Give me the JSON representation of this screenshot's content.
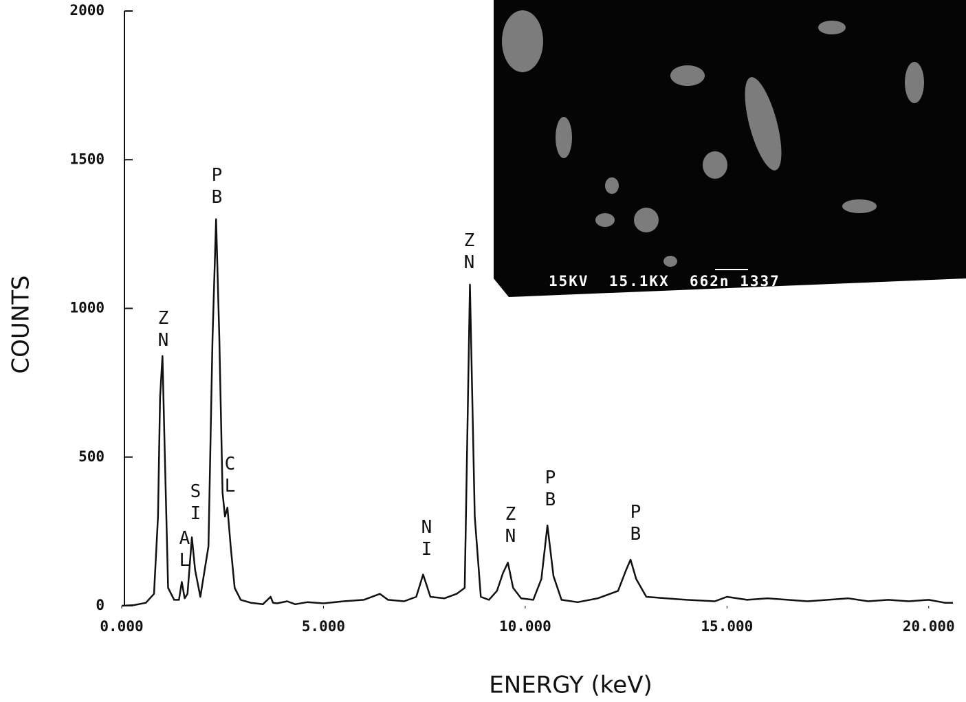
{
  "chart_data": {
    "type": "line",
    "xlabel": "ENERGY (keV)",
    "ylabel": "COUNTS",
    "color": "#111111",
    "x": [
      0,
      0.3,
      0.6,
      0.8,
      0.9,
      0.95,
      1.01,
      1.07,
      1.15,
      1.3,
      1.42,
      1.49,
      1.56,
      1.63,
      1.74,
      1.82,
      1.95,
      2.15,
      2.25,
      2.34,
      2.42,
      2.5,
      2.56,
      2.62,
      2.7,
      2.8,
      2.95,
      3.2,
      3.5,
      3.69,
      3.75,
      3.85,
      4.1,
      4.3,
      4.6,
      5.0,
      5.5,
      6.0,
      6.4,
      6.6,
      7.0,
      7.3,
      7.47,
      7.65,
      8.0,
      8.3,
      8.5,
      8.63,
      8.75,
      8.9,
      9.1,
      9.3,
      9.45,
      9.57,
      9.7,
      9.9,
      10.2,
      10.4,
      10.55,
      10.7,
      10.9,
      11.3,
      11.8,
      12.3,
      12.5,
      12.61,
      12.75,
      13.0,
      13.5,
      14.0,
      14.7,
      15.0,
      15.5,
      16.0,
      17.0,
      17.5,
      18.0,
      18.5,
      19.0,
      19.5,
      20.0,
      20.4,
      20.6
    ],
    "values": [
      0,
      2,
      10,
      40,
      300,
      700,
      840,
      500,
      60,
      20,
      20,
      80,
      25,
      40,
      230,
      120,
      30,
      200,
      900,
      1300,
      900,
      380,
      300,
      330,
      200,
      60,
      20,
      10,
      5,
      30,
      10,
      8,
      15,
      5,
      12,
      8,
      15,
      20,
      40,
      20,
      15,
      30,
      105,
      30,
      25,
      40,
      60,
      1080,
      300,
      30,
      20,
      50,
      110,
      145,
      60,
      25,
      20,
      90,
      270,
      100,
      20,
      12,
      25,
      50,
      120,
      155,
      90,
      30,
      25,
      20,
      15,
      30,
      20,
      25,
      15,
      20,
      25,
      15,
      20,
      15,
      20,
      10,
      10
    ],
    "xlim": [
      0,
      20.6
    ],
    "ylim": [
      0,
      2000
    ],
    "xticks": [
      {
        "value": 0,
        "label": "0.000"
      },
      {
        "value": 5,
        "label": "5.000"
      },
      {
        "value": 10,
        "label": "10.000"
      },
      {
        "value": 15,
        "label": "15.000"
      },
      {
        "value": 20,
        "label": "20.000"
      }
    ],
    "yticks": [
      0,
      500,
      1000,
      1500,
      2000
    ],
    "annotations": [
      "ZN",
      "AL",
      "SI",
      "PB",
      "CL",
      "NI",
      "ZN",
      "ZN",
      "PB",
      "PB"
    ]
  },
  "inset": {
    "caption": "15KV  15.1KX  662n 1337"
  }
}
